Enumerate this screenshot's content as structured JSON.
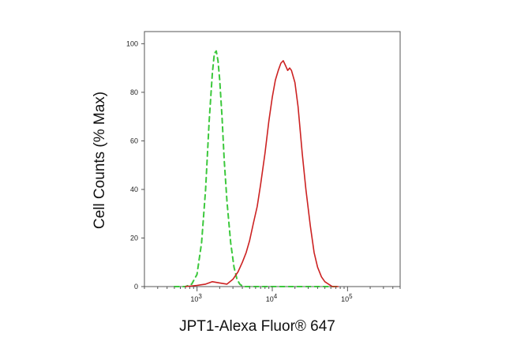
{
  "chart_data": {
    "type": "line",
    "title": "",
    "xlabel": "JPT1-Alexa Fluor® 647",
    "ylabel": "Cell Counts (% Max)",
    "x_scale": "log",
    "xlim": [
      200,
      500000
    ],
    "ylim": [
      0,
      105
    ],
    "y_ticks": [
      0,
      20,
      40,
      60,
      80,
      100
    ],
    "x_major_ticks": [
      {
        "value": 1000,
        "base": "10",
        "exp": "3"
      },
      {
        "value": 10000,
        "base": "10",
        "exp": "4"
      },
      {
        "value": 100000,
        "base": "10",
        "exp": "5"
      }
    ],
    "grid": false,
    "legend": "none",
    "series": [
      {
        "color": "#3cc83c",
        "style": "dashed",
        "x": [
          500,
          700,
          850,
          1000,
          1150,
          1300,
          1450,
          1600,
          1700,
          1800,
          1900,
          2000,
          2150,
          2300,
          2500,
          2800,
          3100,
          3400,
          3700,
          4100,
          5000,
          8000,
          20000,
          80000
        ],
        "y": [
          0,
          0,
          1,
          5,
          18,
          40,
          68,
          88,
          96,
          97,
          93,
          85,
          70,
          52,
          35,
          18,
          8,
          3,
          1,
          0,
          0,
          0,
          0,
          0
        ]
      },
      {
        "color": "#cc2222",
        "style": "solid",
        "x": [
          700,
          1000,
          1300,
          1600,
          2000,
          2500,
          3000,
          3500,
          4000,
          4500,
          5000,
          5600,
          6300,
          7000,
          8000,
          9000,
          10000,
          11000,
          12000,
          13000,
          14000,
          15000,
          16000,
          17000,
          18000,
          20000,
          22000,
          25000,
          28000,
          32000,
          36000,
          40000,
          45000,
          50000,
          56000,
          63000,
          75000
        ],
        "y": [
          0,
          0.5,
          1,
          2,
          1.5,
          1,
          3,
          6,
          10,
          14,
          19,
          26,
          33,
          42,
          55,
          68,
          78,
          85,
          89,
          92,
          93,
          91,
          89,
          90,
          89,
          84,
          74,
          55,
          40,
          25,
          14,
          8,
          4,
          2,
          1,
          0,
          0
        ]
      }
    ]
  }
}
